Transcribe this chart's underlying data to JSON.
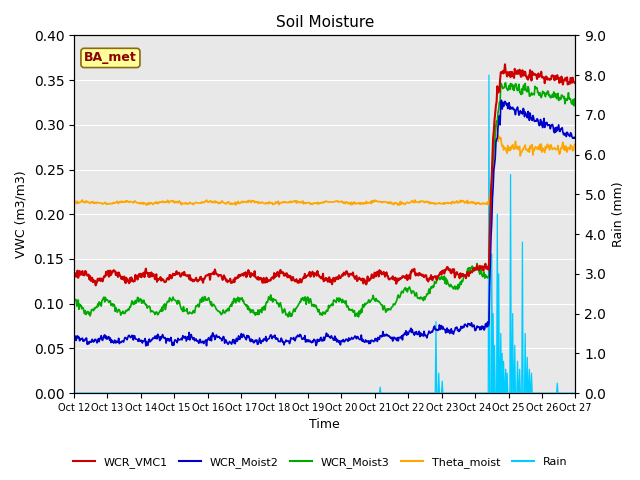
{
  "title": "Soil Moisture",
  "xlabel": "Time",
  "ylabel_left": "VWC (m3/m3)",
  "ylabel_right": "Rain (mm)",
  "xlim_days": [
    0,
    15
  ],
  "ylim_left": [
    0.0,
    0.4
  ],
  "ylim_right": [
    0.0,
    9.0
  ],
  "yticks_left": [
    0.0,
    0.05,
    0.1,
    0.15,
    0.2,
    0.25,
    0.3,
    0.35,
    0.4
  ],
  "yticks_right": [
    0.0,
    1.0,
    2.0,
    3.0,
    4.0,
    5.0,
    6.0,
    7.0,
    8.0,
    9.0
  ],
  "xtick_labels": [
    "Oct 12",
    "Oct 13",
    "Oct 14",
    "Oct 15",
    "Oct 16",
    "Oct 17",
    "Oct 18",
    "Oct 19",
    "Oct 20",
    "Oct 21",
    "Oct 22",
    "Oct 23",
    "Oct 24",
    "Oct 25",
    "Oct 26",
    "Oct 27"
  ],
  "bg_color": "#e8e8e8",
  "annotation_text": "BA_met",
  "annotation_color": "#8b0000",
  "annotation_bg": "#ffff99",
  "series_colors": {
    "WCR_VMC1": "#cc0000",
    "WCR_Moist2": "#0000cc",
    "WCR_Moist3": "#00aa00",
    "Theta_moist": "#ffa500",
    "Rain": "#00ccff"
  },
  "legend_labels": [
    "WCR_VMC1",
    "WCR_Moist2",
    "WCR_Moist3",
    "Theta_moist",
    "Rain"
  ]
}
